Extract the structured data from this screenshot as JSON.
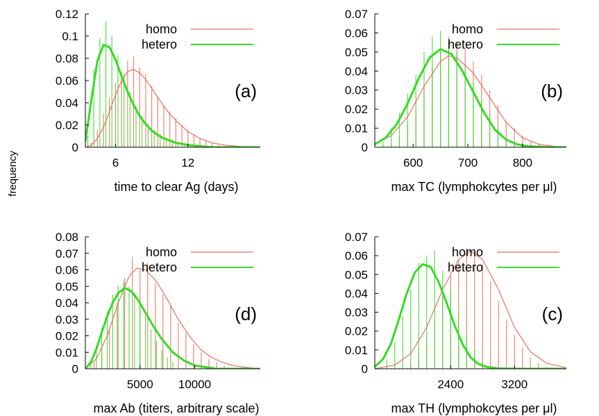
{
  "shared_ylabel": "frequency",
  "chart_data": [
    {
      "id": "a",
      "type": "bar",
      "panel_label": "(a)",
      "xlabel": "time to clear Ag (days)",
      "ylabel": "frequency",
      "xlim": [
        3.5,
        18
      ],
      "ylim": [
        0,
        0.12
      ],
      "xticks": [
        6,
        12
      ],
      "yticks": [
        0,
        0.02,
        0.04,
        0.06,
        0.08,
        0.1,
        0.12
      ],
      "ytick_labels": [
        "0",
        "0.02",
        "0.04",
        "0.06",
        "0.08",
        "0.1",
        "0.12"
      ],
      "legend": [
        {
          "name": "homo",
          "color": "#e8705c"
        },
        {
          "name": "hetero",
          "color": "#33dd22"
        }
      ],
      "legend_position": "top-right",
      "series": [
        {
          "name": "homo",
          "color": "#e8705c",
          "kind": "histogram",
          "x": [
            4.0,
            4.5,
            5.0,
            5.5,
            6.0,
            6.5,
            7.0,
            7.5,
            8.0,
            8.5,
            9.0,
            9.5,
            10.0,
            10.5,
            11.0,
            11.5,
            12.0,
            12.5,
            13.0,
            13.5,
            14.0,
            14.5,
            15.0
          ],
          "values": [
            0.004,
            0.016,
            0.03,
            0.045,
            0.058,
            0.068,
            0.078,
            0.082,
            0.072,
            0.066,
            0.055,
            0.046,
            0.038,
            0.032,
            0.026,
            0.02,
            0.016,
            0.012,
            0.008,
            0.006,
            0.004,
            0.002,
            0.001
          ]
        },
        {
          "name": "hetero",
          "color": "#33dd22",
          "kind": "histogram",
          "x": [
            3.7,
            4.2,
            4.7,
            5.2,
            5.7,
            6.2,
            6.7,
            7.2,
            7.7,
            8.2,
            8.7,
            9.2,
            9.7,
            10.2,
            10.7,
            11.2,
            11.7,
            12.2,
            12.7,
            13.2
          ],
          "values": [
            0.01,
            0.07,
            0.098,
            0.113,
            0.1,
            0.083,
            0.066,
            0.05,
            0.037,
            0.028,
            0.021,
            0.016,
            0.012,
            0.009,
            0.007,
            0.005,
            0.004,
            0.003,
            0.002,
            0.001
          ]
        },
        {
          "name": "homo",
          "color": "#e8705c",
          "kind": "fit",
          "x": [
            3.5,
            4.0,
            4.5,
            5.0,
            5.5,
            6.0,
            6.5,
            7.0,
            7.5,
            8.0,
            8.5,
            9.0,
            9.5,
            10.0,
            10.5,
            11.0,
            11.5,
            12.0,
            12.5,
            13.0,
            13.5,
            14.0,
            15.0,
            16.0,
            17.0,
            18.0
          ],
          "values": [
            0.0,
            0.002,
            0.008,
            0.018,
            0.032,
            0.047,
            0.06,
            0.068,
            0.07,
            0.067,
            0.061,
            0.053,
            0.045,
            0.037,
            0.03,
            0.024,
            0.019,
            0.014,
            0.011,
            0.008,
            0.006,
            0.004,
            0.002,
            0.001,
            0.0,
            0.0
          ]
        },
        {
          "name": "hetero",
          "color": "#33dd22",
          "kind": "fit",
          "x": [
            3.5,
            4.0,
            4.5,
            5.0,
            5.5,
            6.0,
            6.5,
            7.0,
            7.5,
            8.0,
            8.5,
            9.0,
            9.5,
            10.0,
            10.5,
            11.0,
            11.5,
            12.0,
            13.0,
            14.0,
            15.0,
            16.0,
            17.0,
            18.0
          ],
          "values": [
            0.005,
            0.043,
            0.078,
            0.092,
            0.09,
            0.079,
            0.064,
            0.05,
            0.038,
            0.028,
            0.021,
            0.015,
            0.011,
            0.008,
            0.006,
            0.004,
            0.003,
            0.002,
            0.001,
            0.0,
            0.0,
            0.0,
            0.0,
            0.0
          ]
        }
      ]
    },
    {
      "id": "b",
      "type": "bar",
      "panel_label": "(b)",
      "xlabel": "max TC (lymphokcytes per μl)",
      "ylabel": "frequency",
      "xlim": [
        530,
        880
      ],
      "ylim": [
        0,
        0.07
      ],
      "xticks": [
        600,
        700,
        800
      ],
      "yticks": [
        0,
        0.01,
        0.02,
        0.03,
        0.04,
        0.05,
        0.06,
        0.07
      ],
      "ytick_labels": [
        "0",
        "0.01",
        "0.02",
        "0.03",
        "0.04",
        "0.05",
        "0.06",
        "0.07"
      ],
      "legend": [
        {
          "name": "homo",
          "color": "#e8705c"
        },
        {
          "name": "hetero",
          "color": "#33dd22"
        }
      ],
      "legend_position": "top-right",
      "series": [
        {
          "name": "homo",
          "color": "#e8705c",
          "kind": "histogram",
          "x": [
            560,
            575,
            590,
            605,
            620,
            635,
            650,
            665,
            680,
            695,
            710,
            725,
            740,
            755,
            770,
            785,
            800,
            815,
            830
          ],
          "values": [
            0.002,
            0.006,
            0.012,
            0.02,
            0.03,
            0.042,
            0.05,
            0.058,
            0.055,
            0.052,
            0.045,
            0.038,
            0.03,
            0.022,
            0.014,
            0.01,
            0.006,
            0.003,
            0.002
          ]
        },
        {
          "name": "hetero",
          "color": "#33dd22",
          "kind": "histogram",
          "x": [
            545,
            560,
            575,
            590,
            605,
            620,
            635,
            650,
            665,
            680,
            695,
            710,
            725,
            740,
            755,
            770,
            785
          ],
          "values": [
            0.003,
            0.01,
            0.018,
            0.028,
            0.038,
            0.05,
            0.058,
            0.061,
            0.055,
            0.05,
            0.042,
            0.034,
            0.025,
            0.017,
            0.01,
            0.005,
            0.002
          ]
        },
        {
          "name": "homo",
          "color": "#e8705c",
          "kind": "fit",
          "x": [
            530,
            560,
            590,
            620,
            650,
            665,
            680,
            710,
            740,
            770,
            800,
            830,
            860,
            880
          ],
          "values": [
            0.002,
            0.006,
            0.016,
            0.032,
            0.045,
            0.048,
            0.047,
            0.039,
            0.026,
            0.013,
            0.005,
            0.0015,
            0.0004,
            0.0001
          ]
        },
        {
          "name": "hetero",
          "color": "#33dd22",
          "kind": "fit",
          "x": [
            530,
            550,
            570,
            590,
            610,
            630,
            650,
            670,
            690,
            710,
            730,
            750,
            770,
            790,
            810,
            840,
            880
          ],
          "values": [
            0.0015,
            0.005,
            0.012,
            0.023,
            0.036,
            0.047,
            0.0515,
            0.049,
            0.04,
            0.029,
            0.018,
            0.009,
            0.004,
            0.0015,
            0.0005,
            0.0001,
            0.0
          ]
        }
      ]
    },
    {
      "id": "d",
      "type": "bar",
      "panel_label": "(d)",
      "xlabel": "max Ab (titers, arbitrary scale)",
      "ylabel": "frequency",
      "xlim": [
        0,
        16000
      ],
      "ylim": [
        0,
        0.08
      ],
      "xticks": [
        5000,
        10000
      ],
      "yticks": [
        0,
        0.01,
        0.02,
        0.03,
        0.04,
        0.05,
        0.06,
        0.07,
        0.08
      ],
      "ytick_labels": [
        "0",
        "0.01",
        "0.02",
        "0.03",
        "0.04",
        "0.05",
        "0.06",
        "0.07",
        "0.08"
      ],
      "legend": [
        {
          "name": "homo",
          "color": "#e8705c"
        },
        {
          "name": "hetero",
          "color": "#33dd22"
        }
      ],
      "legend_position": "top-right",
      "series": [
        {
          "name": "homo",
          "color": "#e8705c",
          "kind": "histogram",
          "x": [
            800,
            1500,
            2200,
            2900,
            3600,
            4300,
            5000,
            5700,
            6400,
            7100,
            7800,
            8500,
            9200,
            9900,
            10600,
            11300,
            12000,
            12700
          ],
          "values": [
            0.004,
            0.012,
            0.025,
            0.04,
            0.055,
            0.068,
            0.06,
            0.064,
            0.052,
            0.045,
            0.038,
            0.028,
            0.022,
            0.015,
            0.01,
            0.006,
            0.004,
            0.002
          ]
        },
        {
          "name": "hetero",
          "color": "#33dd22",
          "kind": "histogram",
          "x": [
            500,
            1000,
            1500,
            2000,
            2500,
            3000,
            3500,
            4000,
            4500,
            5000,
            5500,
            6000,
            6500,
            7000,
            7500,
            8000,
            8500
          ],
          "values": [
            0.003,
            0.012,
            0.025,
            0.035,
            0.045,
            0.05,
            0.053,
            0.05,
            0.046,
            0.04,
            0.032,
            0.024,
            0.017,
            0.011,
            0.007,
            0.004,
            0.002
          ]
        },
        {
          "name": "homo",
          "color": "#e8705c",
          "kind": "fit",
          "x": [
            0,
            1000,
            2000,
            3000,
            4000,
            4700,
            5500,
            6500,
            7500,
            8500,
            9500,
            10500,
            11500,
            12500,
            13500,
            14500,
            16000
          ],
          "values": [
            0.0,
            0.006,
            0.02,
            0.04,
            0.056,
            0.061,
            0.06,
            0.053,
            0.042,
            0.03,
            0.02,
            0.012,
            0.007,
            0.004,
            0.002,
            0.001,
            0.0
          ]
        },
        {
          "name": "hetero",
          "color": "#33dd22",
          "kind": "fit",
          "x": [
            0,
            500,
            1000,
            1500,
            2000,
            2500,
            3000,
            3600,
            4200,
            4800,
            5500,
            6200,
            7000,
            8000,
            9000,
            10000,
            11000,
            12000,
            16000
          ],
          "values": [
            0.0,
            0.004,
            0.012,
            0.022,
            0.032,
            0.04,
            0.046,
            0.049,
            0.047,
            0.042,
            0.034,
            0.026,
            0.018,
            0.01,
            0.005,
            0.002,
            0.001,
            0.0,
            0.0
          ]
        }
      ]
    },
    {
      "id": "c",
      "type": "bar",
      "panel_label": "(c)",
      "xlabel": "max TH (lymphokcytes per μl)",
      "ylabel": "frequency",
      "xlim": [
        1450,
        3850
      ],
      "ylim": [
        0,
        0.07
      ],
      "xticks": [
        2400,
        3200
      ],
      "yticks": [
        0,
        0.01,
        0.02,
        0.03,
        0.04,
        0.05,
        0.06,
        0.07
      ],
      "ytick_labels": [
        "0",
        "0.01",
        "0.02",
        "0.03",
        "0.04",
        "0.05",
        "0.06",
        "0.07"
      ],
      "legend": [
        {
          "name": "homo",
          "color": "#e8705c"
        },
        {
          "name": "hetero",
          "color": "#33dd22"
        }
      ],
      "legend_position": "top-right",
      "series": [
        {
          "name": "homo",
          "color": "#e8705c",
          "kind": "histogram",
          "x": [
            1900,
            2000,
            2100,
            2200,
            2300,
            2400,
            2500,
            2600,
            2700,
            2800,
            2900,
            3000,
            3100,
            3200,
            3300,
            3400,
            3500,
            3600
          ],
          "values": [
            0.003,
            0.008,
            0.015,
            0.026,
            0.038,
            0.05,
            0.058,
            0.064,
            0.062,
            0.056,
            0.046,
            0.036,
            0.026,
            0.018,
            0.011,
            0.006,
            0.003,
            0.001
          ]
        },
        {
          "name": "hetero",
          "color": "#33dd22",
          "kind": "histogram",
          "x": [
            1600,
            1700,
            1800,
            1900,
            2000,
            2100,
            2200,
            2300,
            2400,
            2500,
            2600,
            2700,
            2800,
            2900
          ],
          "values": [
            0.005,
            0.014,
            0.028,
            0.042,
            0.056,
            0.06,
            0.063,
            0.052,
            0.042,
            0.03,
            0.018,
            0.01,
            0.004,
            0.001
          ]
        },
        {
          "name": "homo",
          "color": "#e8705c",
          "kind": "fit",
          "x": [
            1450,
            1700,
            1900,
            2100,
            2300,
            2500,
            2650,
            2800,
            3000,
            3200,
            3400,
            3600,
            3850
          ],
          "values": [
            0.0,
            0.002,
            0.008,
            0.022,
            0.042,
            0.058,
            0.0625,
            0.058,
            0.042,
            0.022,
            0.009,
            0.003,
            0.0005
          ]
        },
        {
          "name": "hetero",
          "color": "#33dd22",
          "kind": "fit",
          "x": [
            1450,
            1550,
            1650,
            1750,
            1850,
            1950,
            2050,
            2150,
            2250,
            2350,
            2450,
            2550,
            2650,
            2750,
            2850,
            3000,
            3200,
            3500,
            3850
          ],
          "values": [
            0.001,
            0.005,
            0.013,
            0.026,
            0.04,
            0.051,
            0.0555,
            0.054,
            0.046,
            0.035,
            0.023,
            0.013,
            0.006,
            0.0025,
            0.001,
            0.0002,
            0.0,
            0.0,
            0.0
          ]
        }
      ]
    }
  ]
}
